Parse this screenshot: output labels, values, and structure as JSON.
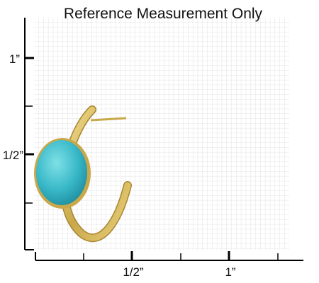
{
  "title": "Reference Measurement Only",
  "y_axis": {
    "labels": [
      "1”",
      "1/2”"
    ]
  },
  "x_axis": {
    "labels": [
      "1/2”",
      "1”"
    ]
  }
}
